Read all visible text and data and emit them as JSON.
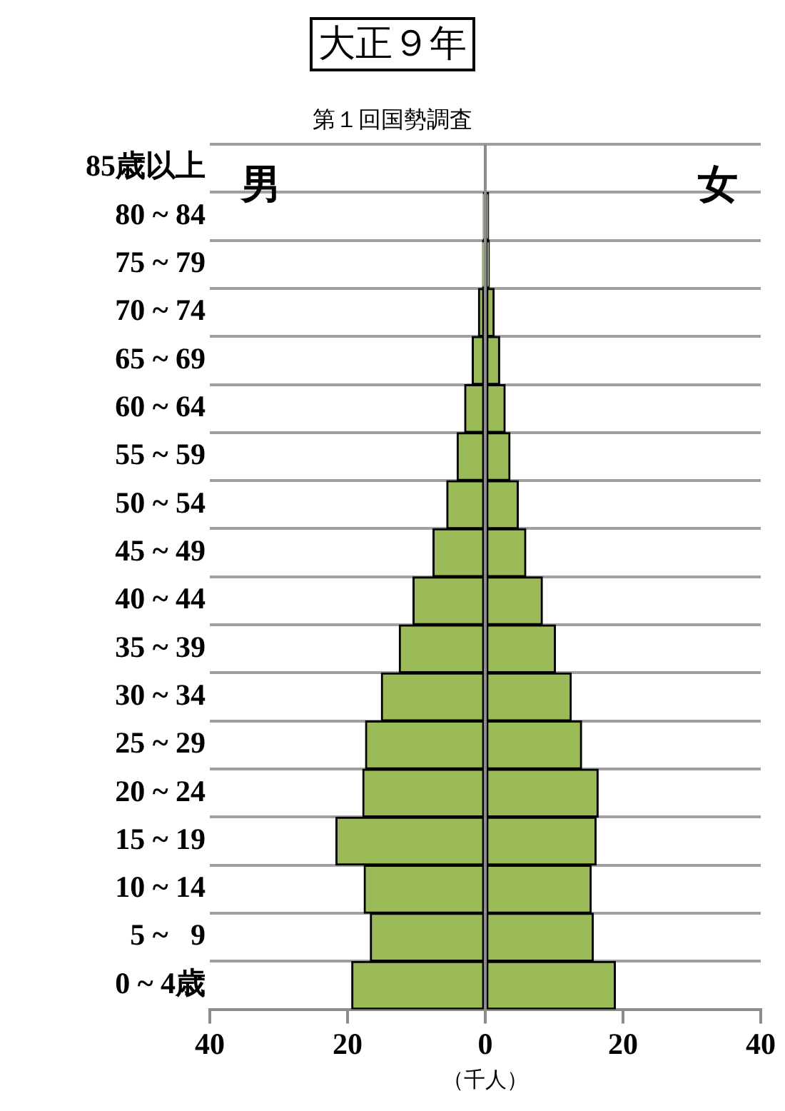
{
  "chart_data": {
    "type": "bar",
    "orientation": "horizontal",
    "stacked": true,
    "title": "大正９年",
    "subtitle": "第１回国勢調査",
    "xlabel": "（千人）",
    "categories": [
      "85歳以上",
      "80 ~ 84",
      "75 ~ 79",
      "70 ~ 74",
      "65 ~ 69",
      "60 ~ 64",
      "55 ~ 59",
      "50 ~ 54",
      "45 ~ 49",
      "40 ~ 44",
      "35 ~ 39",
      "30 ~ 34",
      "25 ~ 29",
      "20 ~ 24",
      "15 ~ 19",
      "10 ~ 14",
      "5 ~   9",
      "0 ~ 4歳"
    ],
    "series": [
      {
        "color": "#9bbb59",
        "values": [
          null,
          -0.3,
          -0.4,
          -1.0,
          -1.9,
          -3.0,
          -4.1,
          -5.6,
          -7.6,
          -10.5,
          -12.5,
          -15.1,
          -17.4,
          -17.8,
          -21.7,
          -17.6,
          -16.7,
          -19.4
        ]
      },
      {
        "color": "#9bbb59",
        "values": [
          null,
          0.5,
          0.6,
          1.3,
          2.1,
          2.9,
          3.6,
          4.8,
          5.9,
          8.3,
          10.2,
          12.5,
          14.0,
          16.4,
          16.1,
          15.4,
          15.7,
          18.9
        ]
      }
    ],
    "xlim": [
      -40,
      40
    ],
    "xticks": [
      {
        "value": -40,
        "label": "40"
      },
      {
        "value": -20,
        "label": "20"
      },
      0,
      20,
      40
    ],
    "ref_lines": [
      {
        "axis": "x",
        "value": 0,
        "color": "#8c8c8c"
      }
    ],
    "annotations": [
      "男",
      "女"
    ],
    "grid": "y",
    "legend": false
  }
}
